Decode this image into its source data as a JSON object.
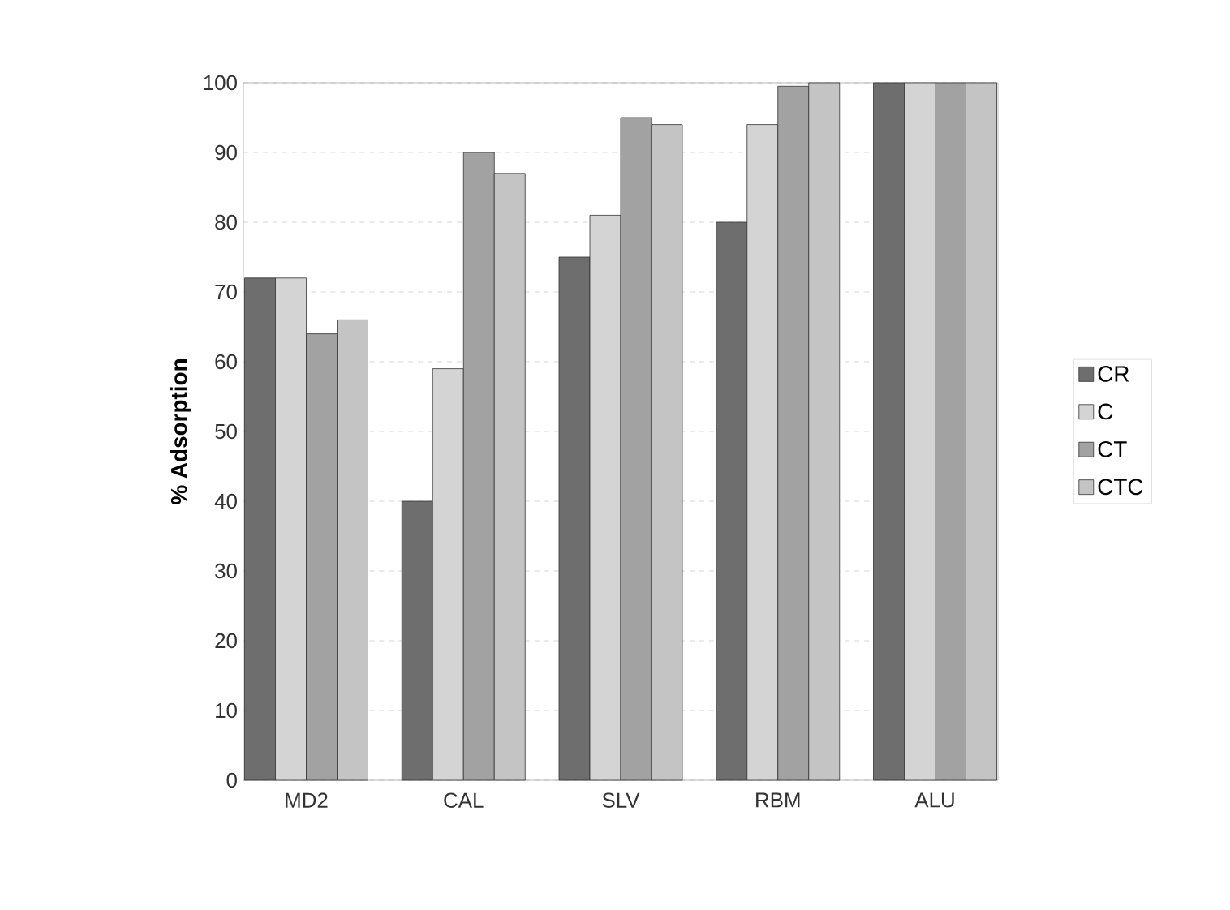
{
  "chart_data": {
    "type": "bar",
    "ylabel": "% Adsorption",
    "categories": [
      "MD2",
      "CAL",
      "SLV",
      "RBM",
      "ALU"
    ],
    "series": [
      {
        "name": "CR",
        "color": "#6e6e6e",
        "values": [
          72,
          40,
          75,
          80,
          100
        ]
      },
      {
        "name": "C",
        "color": "#d4d4d4",
        "values": [
          72,
          59,
          81,
          94,
          100
        ]
      },
      {
        "name": "CT",
        "color": "#a2a2a2",
        "values": [
          64,
          90,
          95,
          99.5,
          100
        ]
      },
      {
        "name": "CTC",
        "color": "#c4c4c4",
        "values": [
          66,
          87,
          94,
          100,
          100
        ]
      }
    ],
    "ylim": [
      0,
      100
    ],
    "yticks": [
      0,
      10,
      20,
      30,
      40,
      50,
      60,
      70,
      80,
      90,
      100
    ],
    "grid": "y",
    "legend": "right"
  }
}
